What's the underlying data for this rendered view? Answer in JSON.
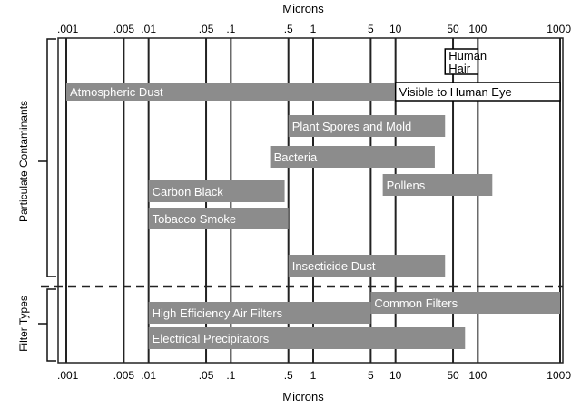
{
  "chart_data": {
    "type": "bar",
    "x_scale": "log",
    "xlim": [
      0.001,
      1000
    ],
    "xlabel_top": "Microns",
    "xlabel_bottom": "Microns",
    "ticks": [
      {
        "value": 0.001,
        "label": ".001"
      },
      {
        "value": 0.005,
        "label": ".005"
      },
      {
        "value": 0.01,
        "label": ".01"
      },
      {
        "value": 0.05,
        "label": ".05"
      },
      {
        "value": 0.1,
        "label": ".1"
      },
      {
        "value": 0.5,
        "label": ".5"
      },
      {
        "value": 1,
        "label": "1"
      },
      {
        "value": 5,
        "label": "5"
      },
      {
        "value": 10,
        "label": "10"
      },
      {
        "value": 50,
        "label": "50"
      },
      {
        "value": 100,
        "label": "100"
      },
      {
        "value": 1000,
        "label": "1000"
      }
    ],
    "groups": [
      {
        "label": "Particulate Contaminants",
        "rows": [
          0,
          8
        ]
      },
      {
        "label": "Filter Types",
        "rows": [
          9,
          11
        ]
      }
    ],
    "bars": [
      {
        "label": "Human Hair",
        "start": 40,
        "end": 100,
        "row": 0,
        "style": "outline",
        "multiline": true
      },
      {
        "label": "Atmospheric Dust",
        "start": 0.001,
        "end": 10,
        "row": 1,
        "style": "filled"
      },
      {
        "label": "Visible to Human Eye",
        "start": 10,
        "end": 1000,
        "row": 1,
        "style": "outline"
      },
      {
        "label": "Plant Spores and Mold",
        "start": 0.5,
        "end": 40,
        "row": 2,
        "style": "filled"
      },
      {
        "label": "Bacteria",
        "start": 0.3,
        "end": 30,
        "row": 3,
        "style": "filled"
      },
      {
        "label": "Pollens",
        "start": 7,
        "end": 150,
        "row": 4,
        "style": "filled"
      },
      {
        "label": "Carbon Black",
        "start": 0.01,
        "end": 0.45,
        "row": 5,
        "style": "filled"
      },
      {
        "label": "Tobacco Smoke",
        "start": 0.01,
        "end": 0.5,
        "row": 6,
        "style": "filled"
      },
      {
        "label": "Insecticide Dust",
        "start": 0.5,
        "end": 40,
        "row": 8,
        "style": "filled"
      },
      {
        "label": "Common Filters",
        "start": 5,
        "end": 1000,
        "row": 9,
        "style": "filled"
      },
      {
        "label": "High Efficiency Air Filters",
        "start": 0.01,
        "end": 5,
        "row": 10,
        "style": "filled"
      },
      {
        "label": "Electrical Precipitators",
        "start": 0.01,
        "end": 70,
        "row": 11,
        "style": "filled"
      }
    ],
    "colors": {
      "bar": "#8c8c8c",
      "bar_text": "#ffffff",
      "grid": "#222222",
      "outline": "#000000"
    }
  }
}
